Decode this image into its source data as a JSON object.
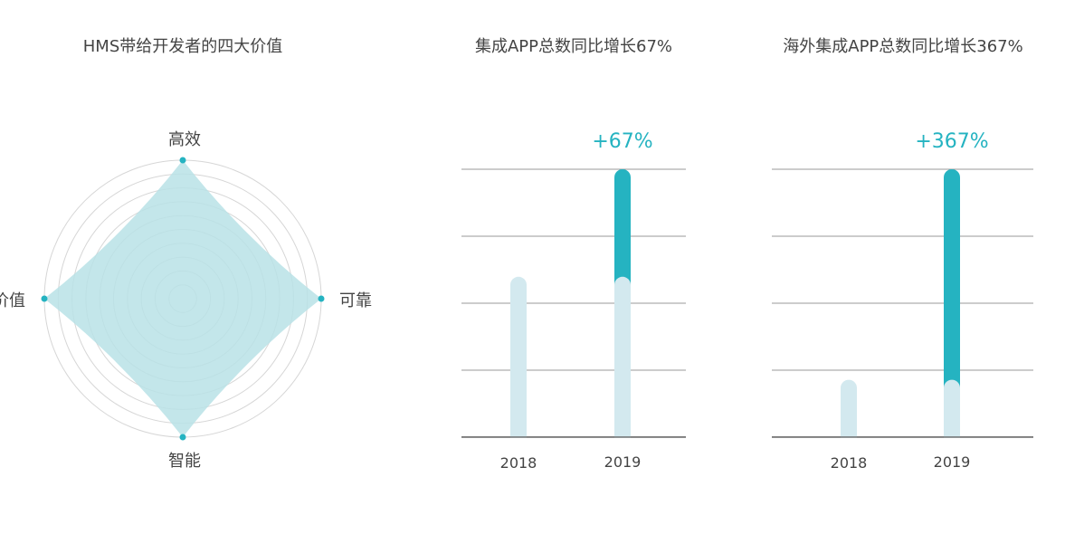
{
  "colors": {
    "accent": "#25B3C1",
    "base_bar": "#D3E9EF",
    "radar_fill": "#B8E2E6",
    "ring": "#D6D6D6",
    "grid": "#9A9A9A",
    "axis": "#666666",
    "text": "#444444"
  },
  "chart_data": [
    {
      "type": "radar",
      "title": "HMS带给开发者的四大价值",
      "axes": [
        "高效",
        "可靠",
        "智能",
        "价值"
      ],
      "values": [
        1,
        1,
        1,
        1
      ],
      "range": [
        0,
        1
      ],
      "rings": 10
    },
    {
      "type": "bar",
      "title": "集成APP总数同比增长67%",
      "categories": [
        "2018",
        "2019"
      ],
      "ylim": [
        0,
        167
      ],
      "series": [
        {
          "values": [
            100,
            100
          ]
        },
        {
          "values": [
            0,
            67
          ]
        }
      ],
      "annotation": "+67%"
    },
    {
      "type": "bar",
      "title": "海外集成APP总数同比增长367%",
      "categories": [
        "2018",
        "2019"
      ],
      "ylim": [
        0,
        467
      ],
      "series": [
        {
          "values": [
            100,
            100
          ]
        },
        {
          "values": [
            0,
            367
          ]
        }
      ],
      "annotation": "+367%"
    }
  ]
}
